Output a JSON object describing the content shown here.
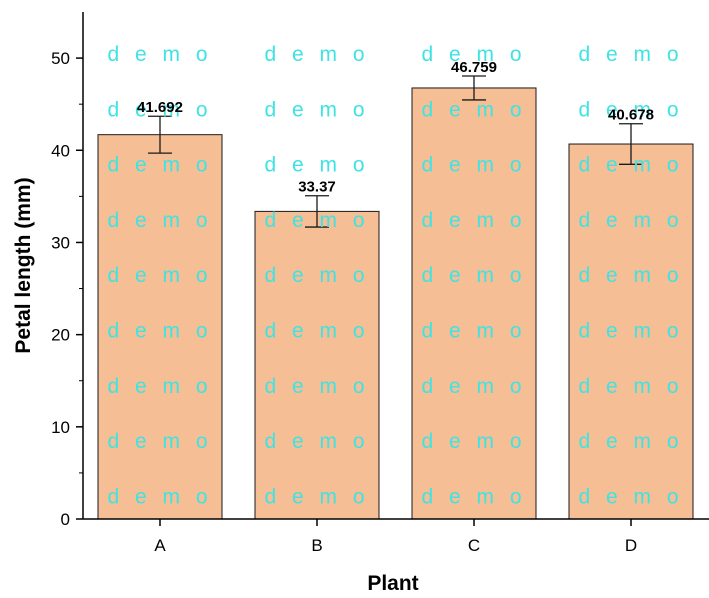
{
  "chart_data": {
    "type": "bar",
    "categories": [
      "A",
      "B",
      "C",
      "D"
    ],
    "values": [
      41.692,
      33.37,
      46.759,
      40.678
    ],
    "data_labels": [
      "41.692",
      "33.37",
      "46.759",
      "40.678"
    ],
    "error_bars": [
      2.0,
      1.7,
      1.3,
      2.2
    ],
    "xlabel": "Plant",
    "ylabel": "Petal length (mm)",
    "ylim": [
      0,
      55
    ],
    "yticks": [
      0,
      10,
      20,
      30,
      40,
      50
    ],
    "grid": false,
    "bar_color": "#f5be94",
    "bar_edge_color": "#1a1a1a",
    "watermark": {
      "text": "demo",
      "color": "#3fe3e3"
    }
  }
}
